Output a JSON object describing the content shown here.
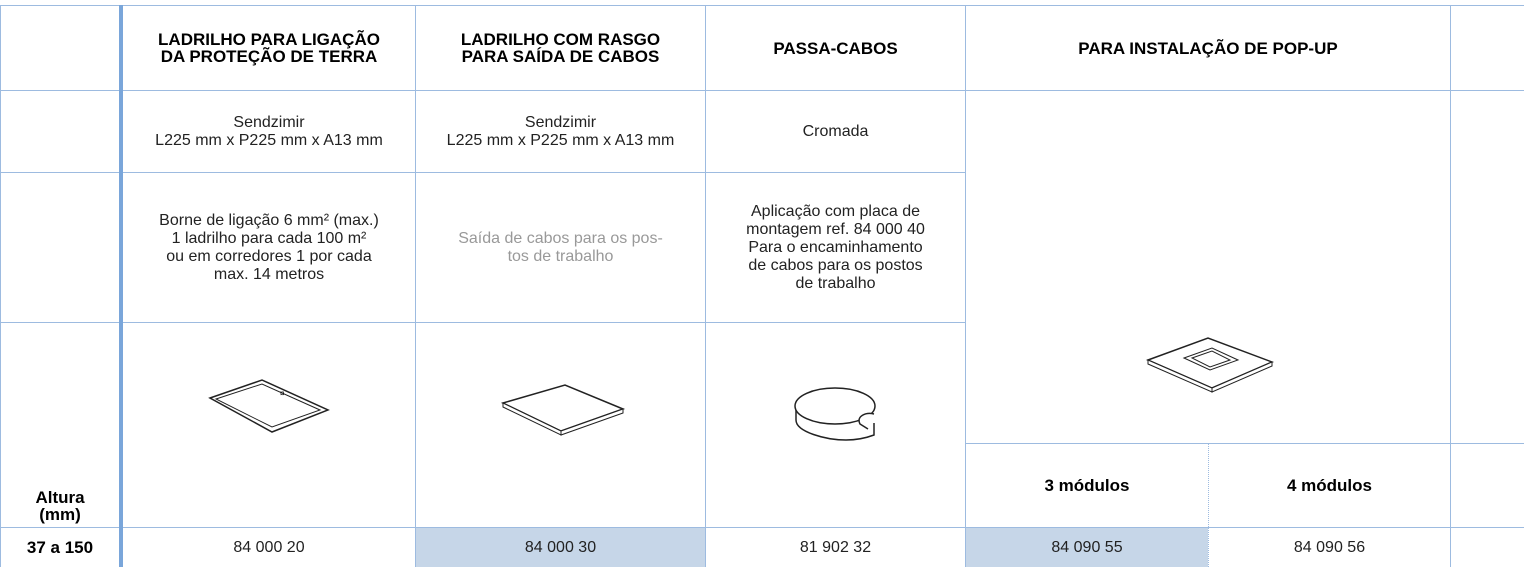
{
  "table": {
    "columns": [
      {
        "title": "LADRILHO PARA LIGAÇÃO\nDA PROTEÇÃO DE TERRA",
        "material": "Sendzimir\nL225 mm x P225 mm x A13 mm",
        "notes": "Borne de ligação 6 mm² (max.)\n1 ladrilho para cada 100 m²\nou em corredores 1 por cada\nmax. 14 metros",
        "ref": "84 000 20"
      },
      {
        "title": "LADRILHO COM RASGO\nPARA SAÍDA DE CABOS",
        "material": "Sendzimir\nL225 mm x P225 mm x A13 mm",
        "notes": "Saída de cabos para os pos-\ntos de trabalho",
        "ref": "84 000 30"
      },
      {
        "title": "PASSA-CABOS",
        "material": "Cromada",
        "notes": "Aplicação com placa de\nmontagem ref. 84 000 40\nPara o encaminhamento\nde cabos para os postos\nde trabalho",
        "ref": "81 902 32"
      }
    ],
    "popup": {
      "title": "PARA INSTALAÇÃO DE POP-UP",
      "variants": [
        "3 módulos",
        "4 módulos"
      ],
      "refs": [
        "84 090 55",
        "84 090 56"
      ]
    },
    "row_label": "Altura\n(mm)",
    "height_range": "37 a 150"
  }
}
